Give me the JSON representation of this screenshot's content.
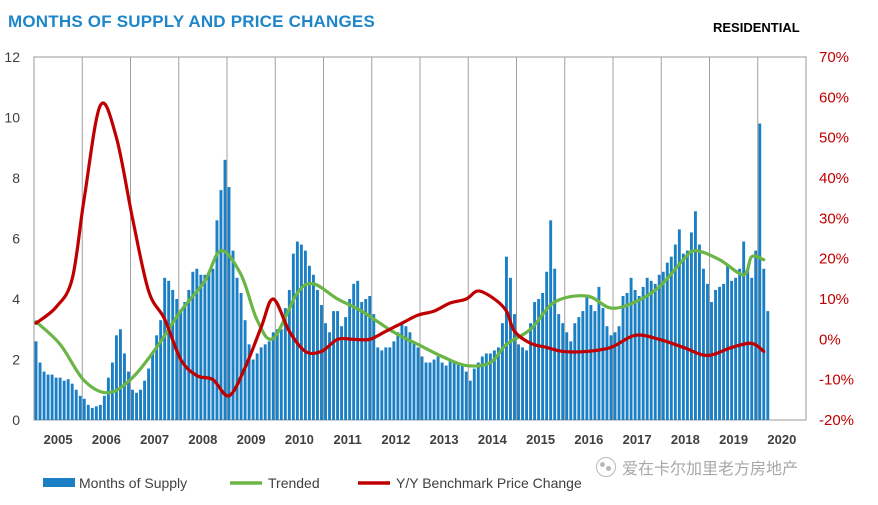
{
  "chart_data": {
    "type": "bar+line",
    "title": "MONTHS OF SUPPLY AND PRICE CHANGES",
    "subtitle": "RESIDENTIAL",
    "years": [
      "2005",
      "2006",
      "2007",
      "2008",
      "2009",
      "2010",
      "2011",
      "2012",
      "2013",
      "2014",
      "2015",
      "2016",
      "2017",
      "2018",
      "2019",
      "2020"
    ],
    "y_left": {
      "min": 0,
      "max": 12,
      "ticks": [
        "0",
        "2",
        "4",
        "6",
        "8",
        "10",
        "12"
      ]
    },
    "y_right": {
      "min": -20,
      "max": 70,
      "ticks": [
        "-20%",
        "-10%",
        "0%",
        "10%",
        "20%",
        "30%",
        "40%",
        "50%",
        "60%",
        "70%"
      ]
    },
    "grid": "vertical year separators",
    "legend_position": "bottom-left",
    "series": [
      {
        "name": "Months of Supply",
        "type": "bar",
        "axis": "left",
        "color": "#1a7fc4",
        "start": "2005-01",
        "monthly": true,
        "values": [
          2.6,
          1.9,
          1.6,
          1.5,
          1.5,
          1.4,
          1.4,
          1.3,
          1.35,
          1.2,
          1.0,
          0.8,
          0.7,
          0.5,
          0.4,
          0.45,
          0.5,
          0.8,
          1.4,
          1.9,
          2.8,
          3.0,
          2.2,
          1.6,
          1.0,
          0.9,
          1.0,
          1.3,
          1.7,
          2.2,
          2.8,
          3.3,
          4.7,
          4.6,
          4.3,
          4.0,
          3.6,
          3.9,
          4.3,
          4.9,
          5.0,
          4.8,
          4.8,
          4.9,
          5.0,
          6.6,
          7.6,
          8.6,
          7.7,
          5.6,
          4.7,
          4.2,
          3.3,
          2.5,
          2.0,
          2.2,
          2.4,
          2.5,
          2.6,
          2.9,
          3.0,
          3.0,
          3.7,
          4.3,
          5.5,
          5.9,
          5.8,
          5.6,
          5.1,
          4.8,
          4.3,
          3.8,
          3.2,
          2.9,
          3.6,
          3.6,
          3.1,
          3.4,
          4.0,
          4.5,
          4.6,
          3.9,
          4.0,
          4.1,
          3.5,
          2.4,
          2.3,
          2.4,
          2.4,
          2.6,
          2.9,
          3.2,
          3.1,
          2.9,
          2.6,
          2.4,
          2.1,
          1.9,
          1.9,
          2.0,
          2.1,
          1.9,
          1.8,
          2.0,
          1.9,
          1.9,
          1.8,
          1.6,
          1.3,
          1.7,
          1.9,
          2.1,
          2.2,
          2.2,
          2.3,
          2.4,
          3.2,
          5.4,
          4.7,
          3.5,
          2.5,
          2.4,
          2.3,
          3.2,
          3.9,
          4.0,
          4.2,
          4.9,
          6.6,
          5.0,
          3.5,
          3.2,
          2.9,
          2.6,
          3.2,
          3.4,
          3.6,
          4.1,
          3.8,
          3.6,
          4.4,
          3.7,
          3.1,
          2.8,
          2.9,
          3.1,
          4.1,
          4.2,
          4.7,
          4.3,
          4.1,
          4.4,
          4.7,
          4.6,
          4.5,
          4.8,
          4.9,
          5.2,
          5.4,
          5.8,
          6.3,
          5.5,
          5.6,
          6.2,
          6.9,
          5.8,
          5.0,
          4.5,
          3.9,
          4.3,
          4.4,
          4.5,
          5.1,
          4.6,
          4.7,
          5.0,
          5.9,
          5.0,
          4.7,
          5.6,
          9.8,
          5.0,
          3.6
        ]
      },
      {
        "name": "Trended",
        "type": "line",
        "axis": "left",
        "color": "#6ab545",
        "points": [
          [
            "2005-01",
            3.25
          ],
          [
            "2005-07",
            2.5
          ],
          [
            "2006-01",
            1.3
          ],
          [
            "2006-07",
            0.9
          ],
          [
            "2007-01",
            1.4
          ],
          [
            "2007-07",
            2.4
          ],
          [
            "2008-01",
            3.6
          ],
          [
            "2008-07",
            4.6
          ],
          [
            "2008-11",
            5.6
          ],
          [
            "2009-04",
            4.8
          ],
          [
            "2009-08",
            3.3
          ],
          [
            "2009-12",
            2.7
          ],
          [
            "2010-06",
            4.2
          ],
          [
            "2010-10",
            4.5
          ],
          [
            "2011-04",
            4.0
          ],
          [
            "2011-10",
            3.6
          ],
          [
            "2012-06",
            2.9
          ],
          [
            "2012-12",
            2.5
          ],
          [
            "2013-06",
            2.1
          ],
          [
            "2013-12",
            1.8
          ],
          [
            "2014-06",
            1.9
          ],
          [
            "2014-10",
            2.5
          ],
          [
            "2015-04",
            3.0
          ],
          [
            "2015-10",
            3.9
          ],
          [
            "2016-06",
            4.1
          ],
          [
            "2016-12",
            3.7
          ],
          [
            "2017-06",
            3.9
          ],
          [
            "2017-12",
            4.4
          ],
          [
            "2018-06",
            5.3
          ],
          [
            "2018-09",
            5.6
          ],
          [
            "2019-03",
            5.3
          ],
          [
            "2019-09",
            4.8
          ],
          [
            "2019-11",
            5.4
          ],
          [
            "2020-02",
            5.3
          ]
        ]
      },
      {
        "name": "Y/Y Benchmark Price Change",
        "type": "line",
        "axis": "right",
        "color": "#c00000",
        "points": [
          [
            "2005-01",
            4
          ],
          [
            "2005-06",
            8
          ],
          [
            "2005-10",
            15
          ],
          [
            "2006-01",
            35
          ],
          [
            "2006-05",
            58
          ],
          [
            "2006-09",
            50
          ],
          [
            "2007-01",
            30
          ],
          [
            "2007-05",
            12
          ],
          [
            "2007-09",
            5
          ],
          [
            "2008-01",
            -5
          ],
          [
            "2008-05",
            -9
          ],
          [
            "2008-09",
            -10
          ],
          [
            "2009-01",
            -14
          ],
          [
            "2009-05",
            -7
          ],
          [
            "2009-09",
            3
          ],
          [
            "2009-12",
            10
          ],
          [
            "2010-04",
            2
          ],
          [
            "2010-08",
            -3
          ],
          [
            "2010-12",
            -3
          ],
          [
            "2011-04",
            0
          ],
          [
            "2011-08",
            0
          ],
          [
            "2011-12",
            0
          ],
          [
            "2012-04",
            2
          ],
          [
            "2012-08",
            4
          ],
          [
            "2012-12",
            6
          ],
          [
            "2013-04",
            7
          ],
          [
            "2013-08",
            9
          ],
          [
            "2013-12",
            10
          ],
          [
            "2014-03",
            12
          ],
          [
            "2014-07",
            10
          ],
          [
            "2014-10",
            7
          ],
          [
            "2014-12",
            2
          ],
          [
            "2015-04",
            -1
          ],
          [
            "2015-08",
            -2
          ],
          [
            "2015-12",
            -3
          ],
          [
            "2016-06",
            -3
          ],
          [
            "2016-12",
            -2
          ],
          [
            "2017-06",
            1
          ],
          [
            "2017-12",
            0
          ],
          [
            "2018-06",
            -2
          ],
          [
            "2018-12",
            -4
          ],
          [
            "2019-06",
            -2
          ],
          [
            "2019-11",
            -1
          ],
          [
            "2020-02",
            -3
          ]
        ]
      }
    ],
    "legend": [
      "Months of Supply",
      "Trended",
      "Y/Y Benchmark Price Change"
    ]
  },
  "watermark": {
    "text": "爱在卡尔加里老方房地产",
    "icon": "wechat-icon"
  }
}
